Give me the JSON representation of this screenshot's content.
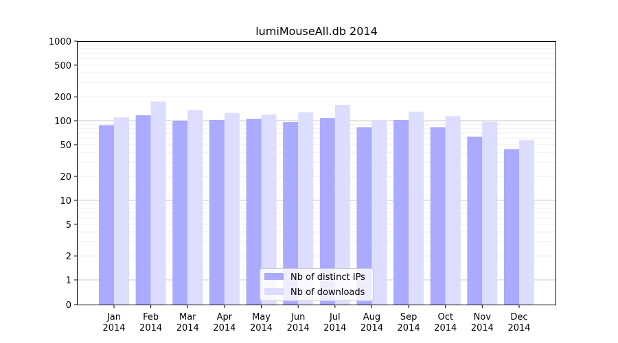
{
  "chart_data": {
    "type": "bar",
    "title": "lumiMouseAll.db 2014",
    "xlabel": "",
    "ylabel": "",
    "yscale": "symlog",
    "ylim": [
      0,
      1200
    ],
    "yticks": [
      0,
      1,
      2,
      5,
      10,
      20,
      50,
      100,
      200,
      500,
      1000
    ],
    "grid": true,
    "legend_position": "lower center",
    "categories": [
      [
        "Jan",
        "2014"
      ],
      [
        "Feb",
        "2014"
      ],
      [
        "Mar",
        "2014"
      ],
      [
        "Apr",
        "2014"
      ],
      [
        "May",
        "2014"
      ],
      [
        "Jun",
        "2014"
      ],
      [
        "Jul",
        "2014"
      ],
      [
        "Aug",
        "2014"
      ],
      [
        "Sep",
        "2014"
      ],
      [
        "Oct",
        "2014"
      ],
      [
        "Nov",
        "2014"
      ],
      [
        "Dec",
        "2014"
      ]
    ],
    "series": [
      {
        "name": "Nb of distinct IPs",
        "color": "#aaaaff",
        "values": [
          88,
          117,
          100,
          102,
          106,
          96,
          108,
          83,
          102,
          83,
          63,
          44
        ]
      },
      {
        "name": "Nb of downloads",
        "color": "#ddddff",
        "values": [
          110,
          175,
          136,
          125,
          120,
          128,
          158,
          102,
          130,
          114,
          97,
          57
        ]
      }
    ]
  }
}
